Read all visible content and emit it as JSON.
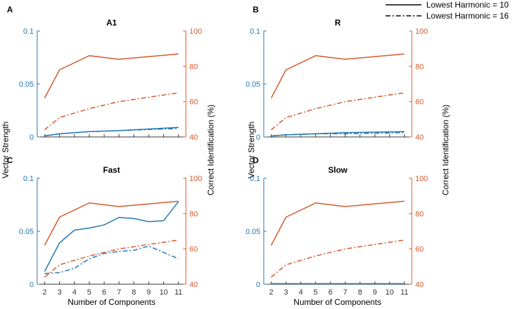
{
  "colors": {
    "blue": "#1f77b4",
    "orange": "#d4582a",
    "axis": "#333333"
  },
  "legend": [
    {
      "label": "Lowest Harmonic = 10",
      "style": "solid"
    },
    {
      "label": "Lowest Harmonic = 16",
      "style": "dashdot"
    }
  ],
  "labels": {
    "left_ylabel": "Vector Strength",
    "right_ylabel": "Correct Identification (%)",
    "xlabel": "Number of Components"
  },
  "chart_data": [
    {
      "id": "A",
      "letter": "A",
      "title": "A1",
      "type": "line",
      "x": [
        2,
        3,
        5,
        7,
        11
      ],
      "xticks": [
        2,
        3,
        4,
        5,
        6,
        7,
        8,
        9,
        10,
        11
      ],
      "xlim": [
        1.5,
        11.5
      ],
      "ylim_left": [
        0,
        0.1
      ],
      "yticks_left": [
        "0",
        "0.05",
        "0.1"
      ],
      "ylim_right": [
        40,
        100
      ],
      "yticks_right": [
        "40",
        "60",
        "80",
        "100"
      ],
      "series": [
        {
          "name": "VS lowest harmonic 10",
          "axis": "left",
          "color": "blue",
          "style": "solid",
          "x": [
            2,
            3,
            5,
            7,
            11
          ],
          "values": [
            0.001,
            0.003,
            0.005,
            0.006,
            0.009
          ]
        },
        {
          "name": "VS lowest harmonic 16",
          "axis": "left",
          "color": "blue",
          "style": "dashdot",
          "x": [
            2,
            3,
            5,
            7,
            11
          ],
          "values": [
            0.001,
            0.003,
            0.005,
            0.006,
            0.008
          ]
        },
        {
          "name": "ID lowest harmonic 10",
          "axis": "right",
          "color": "orange",
          "style": "solid",
          "x": [
            2,
            3,
            5,
            7,
            11
          ],
          "values": [
            62,
            78,
            86,
            84,
            87
          ]
        },
        {
          "name": "ID lowest harmonic 16",
          "axis": "right",
          "color": "orange",
          "style": "dashdot",
          "x": [
            2,
            3,
            5,
            7,
            11
          ],
          "values": [
            44,
            51,
            56,
            60,
            65
          ]
        }
      ]
    },
    {
      "id": "B",
      "letter": "B",
      "title": "R",
      "type": "line",
      "x": [
        2,
        3,
        5,
        7,
        11
      ],
      "xticks": [
        2,
        3,
        4,
        5,
        6,
        7,
        8,
        9,
        10,
        11
      ],
      "xlim": [
        1.5,
        11.5
      ],
      "ylim_left": [
        0,
        0.1
      ],
      "yticks_left": [
        "0",
        "0.05",
        "0.1"
      ],
      "ylim_right": [
        40,
        100
      ],
      "yticks_right": [
        "40",
        "60",
        "80",
        "100"
      ],
      "series": [
        {
          "name": "VS lowest harmonic 10",
          "axis": "left",
          "color": "blue",
          "style": "solid",
          "x": [
            2,
            3,
            5,
            7,
            11
          ],
          "values": [
            0.001,
            0.002,
            0.003,
            0.004,
            0.005
          ]
        },
        {
          "name": "VS lowest harmonic 16",
          "axis": "left",
          "color": "blue",
          "style": "dashdot",
          "x": [
            2,
            3,
            5,
            7,
            11
          ],
          "values": [
            0.001,
            0.002,
            0.003,
            0.003,
            0.004
          ]
        },
        {
          "name": "ID lowest harmonic 10",
          "axis": "right",
          "color": "orange",
          "style": "solid",
          "x": [
            2,
            3,
            5,
            7,
            11
          ],
          "values": [
            62,
            78,
            86,
            84,
            87
          ]
        },
        {
          "name": "ID lowest harmonic 16",
          "axis": "right",
          "color": "orange",
          "style": "dashdot",
          "x": [
            2,
            3,
            5,
            7,
            11
          ],
          "values": [
            44,
            51,
            56,
            60,
            65
          ]
        }
      ]
    },
    {
      "id": "C",
      "letter": "C",
      "title": "Fast",
      "type": "line",
      "x": [
        2,
        3,
        4,
        5,
        6,
        7,
        8,
        9,
        10,
        11
      ],
      "xticks": [
        2,
        3,
        4,
        5,
        6,
        7,
        8,
        9,
        10,
        11
      ],
      "xlim": [
        1.5,
        11.5
      ],
      "ylim_left": [
        0,
        0.1
      ],
      "yticks_left": [
        "0",
        "0.05",
        "0.1"
      ],
      "ylim_right": [
        40,
        100
      ],
      "yticks_right": [
        "40",
        "60",
        "80",
        "100"
      ],
      "series": [
        {
          "name": "VS lowest harmonic 10",
          "axis": "left",
          "color": "blue",
          "style": "solid",
          "x": [
            2,
            3,
            4,
            5,
            6,
            7,
            8,
            9,
            10,
            11
          ],
          "values": [
            0.012,
            0.039,
            0.051,
            0.053,
            0.056,
            0.063,
            0.062,
            0.059,
            0.06,
            0.078
          ]
        },
        {
          "name": "VS lowest harmonic 16",
          "axis": "left",
          "color": "blue",
          "style": "dashdot",
          "x": [
            2,
            3,
            4,
            5,
            6,
            7,
            8,
            9,
            10,
            11
          ],
          "values": [
            0.01,
            0.011,
            0.015,
            0.024,
            0.029,
            0.031,
            0.032,
            0.036,
            0.03,
            0.024
          ]
        },
        {
          "name": "ID lowest harmonic 10",
          "axis": "right",
          "color": "orange",
          "style": "solid",
          "x": [
            2,
            3,
            5,
            7,
            11
          ],
          "values": [
            62,
            78,
            86,
            84,
            87
          ]
        },
        {
          "name": "ID lowest harmonic 16",
          "axis": "right",
          "color": "orange",
          "style": "dashdot",
          "x": [
            2,
            3,
            5,
            7,
            11
          ],
          "values": [
            44,
            51,
            56,
            60,
            65
          ]
        }
      ]
    },
    {
      "id": "D",
      "letter": "D",
      "title": "Slow",
      "type": "line",
      "x": [
        2,
        3,
        5,
        7,
        11
      ],
      "xticks": [
        2,
        3,
        4,
        5,
        6,
        7,
        8,
        9,
        10,
        11
      ],
      "xlim": [
        1.5,
        11.5
      ],
      "ylim_left": [
        0,
        0.1
      ],
      "yticks_left": [
        "0",
        "0.05",
        "0.1"
      ],
      "ylim_right": [
        40,
        100
      ],
      "yticks_right": [
        "40",
        "60",
        "80",
        "100"
      ],
      "series": [
        {
          "name": "VS lowest harmonic 10",
          "axis": "left",
          "color": "blue",
          "style": "solid",
          "x": [
            2,
            3,
            5,
            7,
            11
          ],
          "values": [
            0.0005,
            0.0005,
            0.0005,
            0.0005,
            0.0005
          ]
        },
        {
          "name": "VS lowest harmonic 16",
          "axis": "left",
          "color": "blue",
          "style": "dashdot",
          "x": [
            2,
            3,
            5,
            7,
            11
          ],
          "values": [
            0.0004,
            0.0004,
            0.0004,
            0.0004,
            0.0004
          ]
        },
        {
          "name": "ID lowest harmonic 10",
          "axis": "right",
          "color": "orange",
          "style": "solid",
          "x": [
            2,
            3,
            5,
            7,
            11
          ],
          "values": [
            62,
            78,
            86,
            84,
            87
          ]
        },
        {
          "name": "ID lowest harmonic 16",
          "axis": "right",
          "color": "orange",
          "style": "dashdot",
          "x": [
            2,
            3,
            5,
            7,
            11
          ],
          "values": [
            44,
            51,
            56,
            60,
            65
          ]
        }
      ]
    }
  ]
}
